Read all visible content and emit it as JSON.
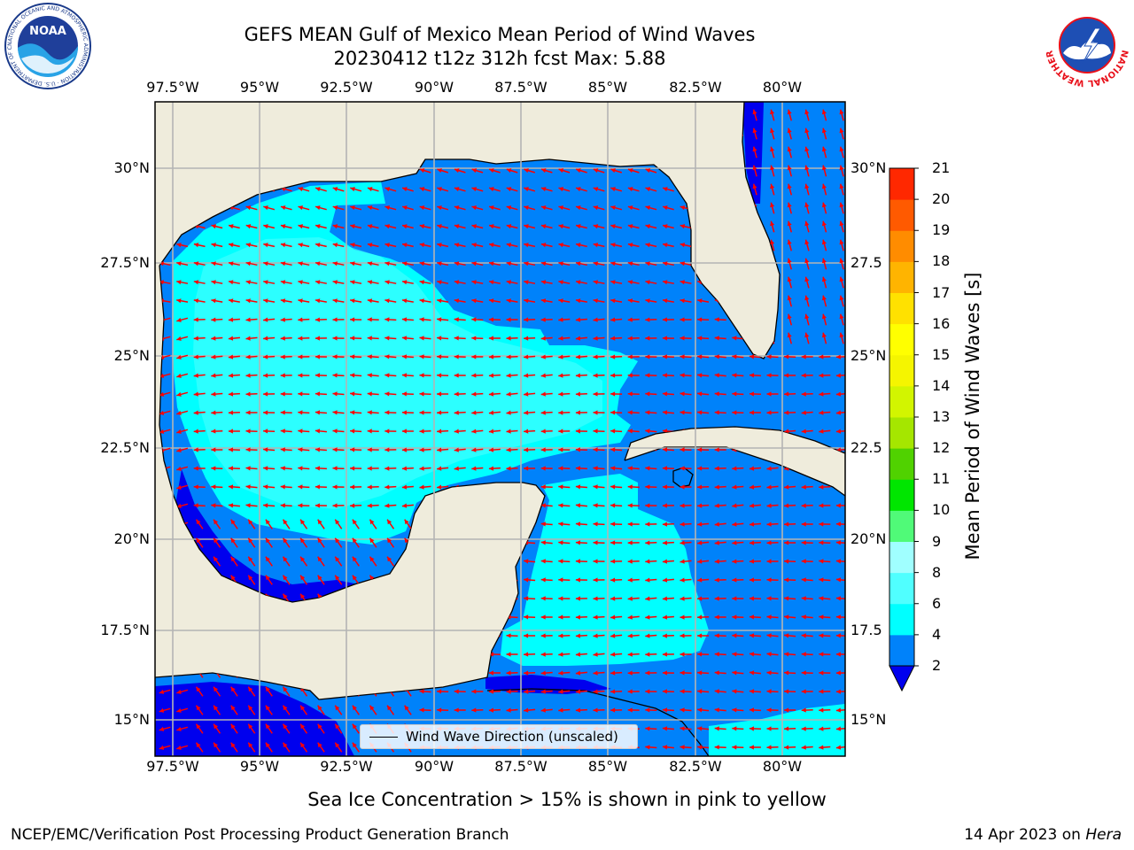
{
  "title": {
    "line1": "GEFS MEAN Gulf of Mexico Mean Period of Wind Waves",
    "line2": "20230412 t12z 312h fcst   Max: 5.88"
  },
  "map": {
    "lon_labels": [
      "97.5°W",
      "95°W",
      "92.5°W",
      "90°W",
      "87.5°W",
      "85°W",
      "82.5°W",
      "80°W"
    ],
    "lat_labels_left": [
      "30°N",
      "27.5°N",
      "25°N",
      "22.5°N",
      "20°N",
      "17.5°N",
      "15°N"
    ],
    "lat_labels_right": [
      "30°N",
      "27.5",
      "25°N",
      "22.5",
      "20°N",
      "17.5",
      "15°N"
    ],
    "colors": {
      "land": "#efecdc",
      "ocean_dark": "#0000ee",
      "ocean_mid": "#0082fa",
      "ocean_light": "#00ffff",
      "arrow": "#ff0000",
      "grid": "#b4b4b4"
    }
  },
  "legend": {
    "label": "Wind Wave Direction (unscaled)"
  },
  "colorbar": {
    "label": "Mean Period of Wind Waves [s]",
    "ticks": [
      "2",
      "4",
      "6",
      "8",
      "9",
      "10",
      "11",
      "12",
      "13",
      "14",
      "15",
      "16",
      "17",
      "18",
      "19",
      "20",
      "21"
    ],
    "colors": [
      "#0082fa",
      "#00ffff",
      "#50ffff",
      "#a0ffff",
      "#50fa78",
      "#00e600",
      "#50d200",
      "#a5e600",
      "#d2f500",
      "#f5f500",
      "#ffff00",
      "#ffe100",
      "#ffb400",
      "#ff8c00",
      "#ff5a00",
      "#ff2800",
      "#ff0000"
    ],
    "extend_color": "#0000ee"
  },
  "subtitle": "Sea Ice Concentration > 15% is shown in pink to yellow",
  "footer": {
    "left": "NCEP/EMC/Verification Post Processing Product Generation Branch",
    "date": "14 Apr 2023 on ",
    "host": "Hera"
  },
  "logos": {
    "noaa_text": "NOAA",
    "noaa_ring": "NATIONAL OCEANIC AND ATMOSPHERIC ADMINISTRATION · U.S. DEPARTMENT OF COMMERCE",
    "nws_ring": "NATIONAL WEATHER SERVICE"
  }
}
